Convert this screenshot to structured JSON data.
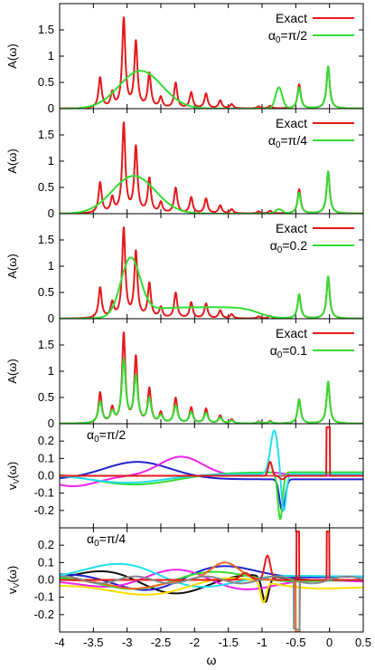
{
  "chart_data": {
    "type": "line",
    "x_axis": {
      "label": "ω",
      "range": [
        -4,
        0.5
      ],
      "ticks": [
        -4,
        -3.5,
        -3,
        -2.5,
        -2,
        -1.5,
        -1,
        -0.5,
        0,
        0.5
      ],
      "tick_labels": [
        "-4",
        "-3.5",
        "-3",
        "-2.5",
        "-2",
        "-1.5",
        "-1",
        "-0.5",
        "0",
        "0.5"
      ]
    },
    "panels": [
      {
        "kind": "spectral",
        "ylabel": "A(ω)",
        "ylim": [
          0,
          2.0
        ],
        "yticks": [
          0,
          0.5,
          1,
          1.5
        ],
        "ytick_labels": [
          "0",
          "0.5",
          "1",
          "1.5"
        ],
        "legend_position": "top-right",
        "legend": [
          "Exact",
          "α0=π/2"
        ],
        "series": [
          {
            "name": "Exact",
            "color": "#e41a1c",
            "role": "exact"
          },
          {
            "name": "α0=π/2",
            "color": "#33dd33",
            "broad_center": -2.8,
            "broad_width": 0.45,
            "broad_height": 0.72,
            "bump_height": 0.4
          }
        ]
      },
      {
        "kind": "spectral",
        "ylabel": "A(ω)",
        "ylim": [
          0,
          2.0
        ],
        "yticks": [
          0,
          0.5,
          1,
          1.5
        ],
        "ytick_labels": [
          "0",
          "0.5",
          "1",
          "1.5"
        ],
        "legend_position": "top-right",
        "legend": [
          "Exact",
          "α0=π/4"
        ],
        "series": [
          {
            "name": "Exact",
            "color": "#e41a1c",
            "role": "exact"
          },
          {
            "name": "α0=π/4",
            "color": "#33dd33",
            "broad_center": -2.9,
            "broad_width": 0.45,
            "broad_height": 0.72,
            "bump_height": 0.08
          }
        ]
      },
      {
        "kind": "spectral",
        "ylabel": "A(ω)",
        "ylim": [
          0,
          2.0
        ],
        "yticks": [
          0,
          0.5,
          1,
          1.5
        ],
        "ytick_labels": [
          "0",
          "0.5",
          "1",
          "1.5"
        ],
        "legend_position": "top-right",
        "legend": [
          "Exact",
          "α0=0.2"
        ],
        "series": [
          {
            "name": "Exact",
            "color": "#e41a1c",
            "role": "exact"
          },
          {
            "name": "α0=0.2",
            "color": "#33dd33",
            "broad_center": -2.95,
            "broad_width": 0.2,
            "broad_height": 1.07,
            "plateau": 0.22
          }
        ]
      },
      {
        "kind": "spectral",
        "ylabel": "A(ω)",
        "ylim": [
          0,
          2.0
        ],
        "yticks": [
          0,
          0.5,
          1,
          1.5
        ],
        "ytick_labels": [
          "0",
          "0.5",
          "1",
          "1.5"
        ],
        "legend_position": "top-right",
        "legend": [
          "Exact",
          "α0=0.1"
        ],
        "series": [
          {
            "name": "Exact",
            "color": "#e41a1c",
            "role": "exact"
          },
          {
            "name": "α0=0.1",
            "color": "#33dd33",
            "peak_scale": 0.7
          }
        ]
      },
      {
        "kind": "potential",
        "ylabel": "vV(ω)",
        "ylim": [
          -0.3,
          0.3
        ],
        "yticks": [
          -0.2,
          -0.1,
          0.0,
          0.1,
          0.2
        ],
        "ytick_labels": [
          "-0.2",
          "-0.1",
          "0.0",
          "0.1",
          "0.2"
        ],
        "annotation": "α0=π/2",
        "series": [
          {
            "color": "#2222cc"
          },
          {
            "color": "#ee22ee"
          },
          {
            "color": "#33dd33"
          },
          {
            "color": "#22ddee"
          },
          {
            "color": "#e41a1c"
          }
        ]
      },
      {
        "kind": "potential",
        "ylabel": "vV(ω)",
        "ylim": [
          -0.3,
          0.3
        ],
        "yticks": [
          -0.2,
          -0.1,
          0.0,
          0.1,
          0.2
        ],
        "ytick_labels": [
          "-0.2",
          "-0.1",
          "0.0",
          "0.1",
          "0.2"
        ],
        "annotation": "α0=π/4",
        "series": [
          {
            "color": "#111111"
          },
          {
            "color": "#2222cc"
          },
          {
            "color": "#ee22ee"
          },
          {
            "color": "#33dd33"
          },
          {
            "color": "#22ddee"
          },
          {
            "color": "#ffdd00"
          },
          {
            "color": "#ee6622"
          },
          {
            "color": "#e41a1c"
          },
          {
            "color": "#888888"
          }
        ]
      }
    ],
    "exact_peaks": [
      {
        "x": -3.4,
        "h": 0.58
      },
      {
        "x": -3.22,
        "h": 0.28
      },
      {
        "x": -3.05,
        "h": 1.7
      },
      {
        "x": -2.87,
        "h": 1.25
      },
      {
        "x": -2.67,
        "h": 0.65
      },
      {
        "x": -2.5,
        "h": 0.2
      },
      {
        "x": -2.28,
        "h": 0.48
      },
      {
        "x": -2.05,
        "h": 0.3
      },
      {
        "x": -1.83,
        "h": 0.28
      },
      {
        "x": -1.62,
        "h": 0.15
      },
      {
        "x": -1.45,
        "h": 0.08
      },
      {
        "x": -1.05,
        "h": 0.04
      },
      {
        "x": -0.88,
        "h": 0.05
      },
      {
        "x": -0.45,
        "h": 0.46
      },
      {
        "x": -0.02,
        "h": 0.8
      }
    ]
  }
}
